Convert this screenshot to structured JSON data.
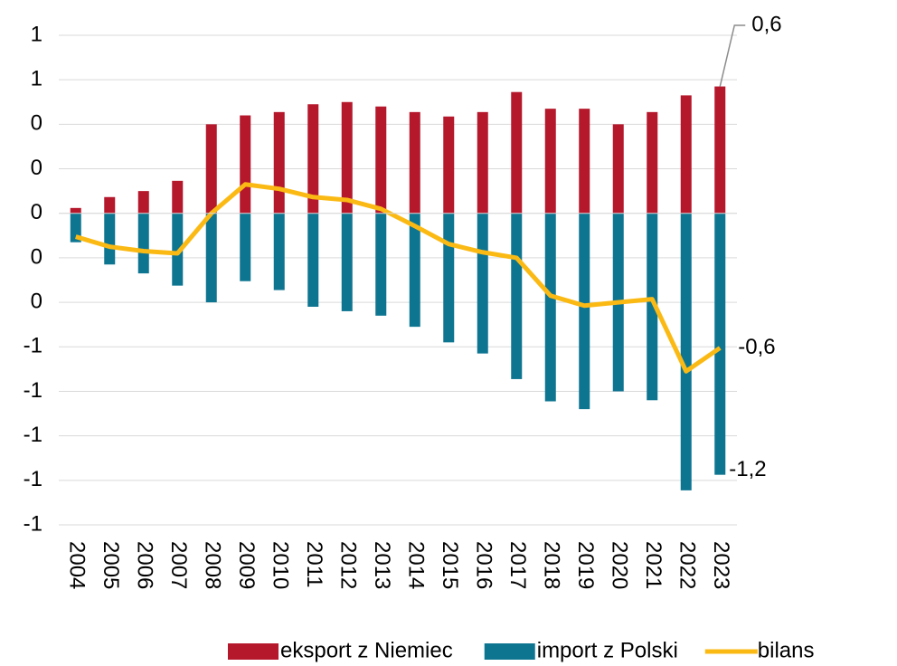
{
  "chart_data": {
    "type": "bar",
    "categories": [
      "2004",
      "2005",
      "2006",
      "2007",
      "2008",
      "2009",
      "2010",
      "2011",
      "2012",
      "2013",
      "2014",
      "2015",
      "2016",
      "2017",
      "2018",
      "2019",
      "2020",
      "2021",
      "2022",
      "2023"
    ],
    "series": [
      {
        "name": "eksport z Niemiec",
        "type": "bar",
        "color": "#b5172b",
        "values": [
          0.024,
          0.073,
          0.1,
          0.146,
          0.4,
          0.44,
          0.455,
          0.49,
          0.5,
          0.48,
          0.455,
          0.435,
          0.455,
          0.545,
          0.47,
          0.47,
          0.4,
          0.455,
          0.53,
          0.57
        ],
        "value_labels": [
          null,
          null,
          null,
          null,
          null,
          null,
          null,
          null,
          null,
          null,
          null,
          null,
          null,
          null,
          null,
          null,
          null,
          null,
          null,
          "0,6"
        ]
      },
      {
        "name": "import z Polski",
        "type": "bar",
        "color": "#0e7591",
        "values": [
          -0.13,
          -0.23,
          -0.27,
          -0.325,
          -0.4,
          -0.305,
          -0.345,
          -0.42,
          -0.44,
          -0.46,
          -0.51,
          -0.58,
          -0.63,
          -0.745,
          -0.845,
          -0.88,
          -0.8,
          -0.84,
          -1.245,
          -1.175
        ],
        "value_labels": [
          null,
          null,
          null,
          null,
          null,
          null,
          null,
          null,
          null,
          null,
          null,
          null,
          null,
          null,
          null,
          null,
          null,
          null,
          null,
          "-1,2"
        ]
      },
      {
        "name": "bilans",
        "type": "line",
        "color": "#fbb914",
        "values": [
          -0.105,
          -0.15,
          -0.17,
          -0.18,
          0,
          0.13,
          0.11,
          0.073,
          0.06,
          0.02,
          -0.057,
          -0.138,
          -0.175,
          -0.2,
          -0.37,
          -0.415,
          -0.4,
          -0.386,
          -0.71,
          -0.605
        ],
        "value_labels": [
          null,
          null,
          null,
          null,
          null,
          null,
          null,
          null,
          null,
          null,
          null,
          null,
          null,
          null,
          null,
          null,
          null,
          null,
          null,
          "-0,6"
        ]
      }
    ],
    "ylim": [
      -1.4,
      0.8
    ],
    "yticks": [
      {
        "value": 0.8,
        "label": "1"
      },
      {
        "value": 0.6,
        "label": "1"
      },
      {
        "value": 0.4,
        "label": "0"
      },
      {
        "value": 0.2,
        "label": "0"
      },
      0,
      {
        "value": -0.2,
        "label": "0"
      },
      {
        "value": -0.4,
        "label": "0"
      },
      {
        "value": -0.6,
        "label": "-1"
      },
      {
        "value": -0.8,
        "label": "-1"
      },
      {
        "value": -1,
        "label": "-1"
      },
      {
        "value": -1.2,
        "label": "-1"
      },
      {
        "value": -1.4,
        "label": "-1"
      }
    ],
    "grid": true,
    "legend": "bottom"
  }
}
